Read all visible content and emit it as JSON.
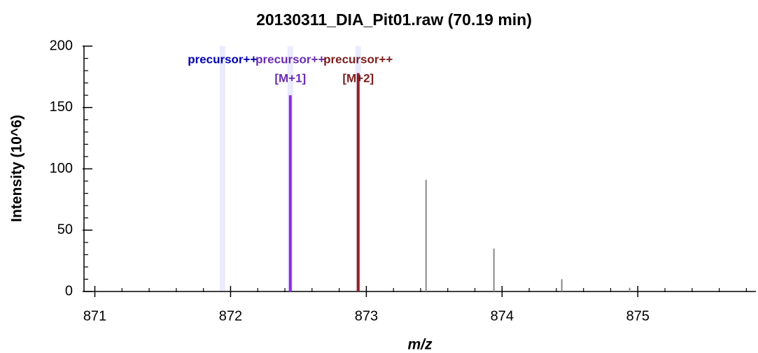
{
  "chart_data": {
    "type": "spectrum",
    "title": "20130311_DIA_Pit01.raw  (70.19 min)",
    "xlabel": "m/z",
    "ylabel": "Intensity (10^6)",
    "x": [
      872.44,
      872.94,
      873.44,
      873.94,
      874.44,
      874.94
    ],
    "values": [
      160,
      178,
      91,
      35,
      10,
      3
    ],
    "colors": [
      "#8a2be2",
      "#8b2323",
      "#888888",
      "#888888",
      "#888888",
      "#888888"
    ],
    "xlim": [
      870.92,
      875.87
    ],
    "xticks": [
      871,
      872,
      873,
      874,
      875
    ],
    "xminorticks": [
      871.2,
      871.4,
      871.6,
      871.8,
      872.2,
      872.4,
      872.6,
      872.8,
      873.2,
      873.4,
      873.6,
      873.8,
      874.2,
      874.4,
      874.6,
      874.8,
      875.2,
      875.4,
      875.6,
      875.8
    ],
    "ylim": [
      0,
      200
    ],
    "yticks": [
      0,
      50,
      100,
      150,
      200
    ],
    "yminorticks": [
      10,
      20,
      30,
      40,
      60,
      70,
      80,
      90,
      110,
      120,
      130,
      140,
      160,
      170,
      180,
      190
    ],
    "annotations": [
      {
        "x": 871.94,
        "lines": [
          "precursor++"
        ],
        "color": "#0000b0"
      },
      {
        "x": 872.44,
        "lines": [
          "precursor++",
          "[M+1]"
        ],
        "color": "#6a2cb0"
      },
      {
        "x": 872.94,
        "lines": [
          "precursor++",
          "[M+2]"
        ],
        "color": "#7a1e1e"
      }
    ]
  }
}
